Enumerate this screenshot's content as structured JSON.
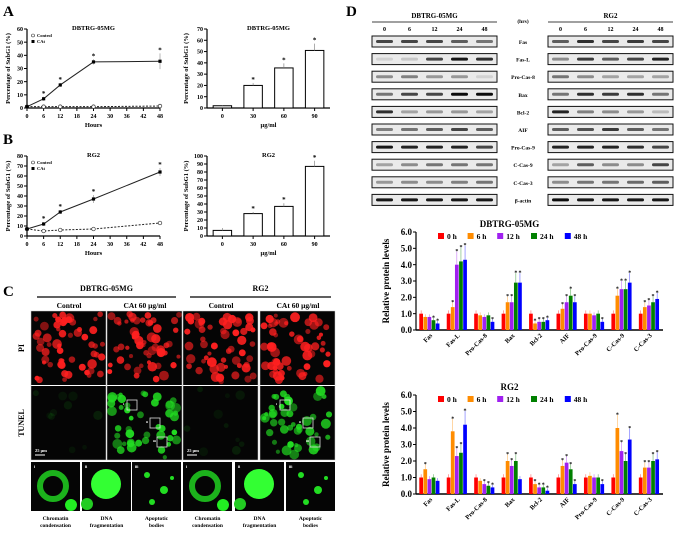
{
  "panel_labels": {
    "a": "A",
    "b": "B",
    "c": "C",
    "d": "D"
  },
  "chart_data": [
    {
      "id": "A-line",
      "type": "line",
      "title": "DBTRG-05MG",
      "xlabel": "Hours",
      "ylabel": "Percentage of SubG1 (%)",
      "xticks": [
        0,
        6,
        12,
        18,
        24,
        30,
        36,
        42,
        48
      ],
      "ylim": [
        0,
        60
      ],
      "yticks": [
        0,
        10,
        20,
        30,
        40,
        50,
        60
      ],
      "legend": [
        "Control",
        "CAt"
      ],
      "legend_position": "top-left",
      "series": [
        {
          "name": "Control",
          "style": "dashed",
          "x": [
            0,
            6,
            12,
            24,
            48
          ],
          "y": [
            1,
            1,
            1,
            1,
            1.5
          ],
          "err": [
            0.5,
            0.5,
            0.5,
            0.5,
            0.5
          ],
          "sig": [
            false,
            false,
            false,
            false,
            false
          ]
        },
        {
          "name": "CAt",
          "style": "solid",
          "x": [
            0,
            6,
            12,
            24,
            48
          ],
          "y": [
            1,
            7,
            17.5,
            35,
            35.5
          ],
          "err": [
            0.5,
            1.5,
            1.5,
            2,
            6
          ],
          "sig": [
            false,
            true,
            true,
            true,
            true
          ]
        }
      ]
    },
    {
      "id": "A-bar",
      "type": "bar",
      "title": "DBTRG-05MG",
      "xlabel": "μg/ml",
      "ylabel": "Percentage of SubG1 (%)",
      "categories": [
        "0",
        "30",
        "60",
        "90"
      ],
      "values": [
        2,
        20,
        35.5,
        51
      ],
      "err": [
        0.5,
        2,
        4,
        6
      ],
      "sig": [
        false,
        true,
        true,
        true
      ],
      "ylim": [
        0,
        70
      ],
      "yticks": [
        0,
        10,
        20,
        30,
        40,
        50,
        60,
        70
      ]
    },
    {
      "id": "B-line",
      "type": "line",
      "title": "RG2",
      "xlabel": "Hours",
      "ylabel": "Percentage of SubG1 (%)",
      "xticks": [
        0,
        6,
        12,
        18,
        24,
        30,
        36,
        42,
        48
      ],
      "ylim": [
        0,
        80
      ],
      "yticks": [
        0,
        10,
        20,
        30,
        40,
        50,
        60,
        70,
        80
      ],
      "legend": [
        "Control",
        "CAt"
      ],
      "legend_position": "top-left",
      "series": [
        {
          "name": "Control",
          "style": "dashed",
          "x": [
            0,
            6,
            12,
            24,
            48
          ],
          "y": [
            7,
            5,
            6,
            7,
            13
          ],
          "err": [
            1,
            1,
            1,
            1,
            1.5
          ],
          "sig": [
            false,
            false,
            false,
            false,
            false
          ]
        },
        {
          "name": "CAt",
          "style": "solid",
          "x": [
            0,
            6,
            12,
            24,
            48
          ],
          "y": [
            7,
            12,
            24,
            37,
            64
          ],
          "err": [
            1,
            2,
            2,
            4,
            4
          ],
          "sig": [
            false,
            true,
            true,
            true,
            true
          ]
        }
      ]
    },
    {
      "id": "B-bar",
      "type": "bar",
      "title": "RG2",
      "xlabel": "μg/ml",
      "ylabel": "Percentage of SubG1 (%)",
      "categories": [
        "0",
        "30",
        "60",
        "90"
      ],
      "values": [
        7,
        28,
        37,
        87
      ],
      "err": [
        3,
        2,
        4,
        7
      ],
      "sig": [
        false,
        true,
        true,
        true
      ],
      "ylim": [
        0,
        100
      ],
      "yticks": [
        0,
        10,
        20,
        30,
        40,
        50,
        60,
        70,
        80,
        90,
        100
      ]
    },
    {
      "id": "D-bar-dbtrg",
      "type": "bar",
      "title": "DBTRG-05MG",
      "ylabel": "Relative protein levels",
      "ylim": [
        0,
        6
      ],
      "yticks": [
        "0.0",
        "1.0",
        "2.0",
        "3.0",
        "4.0",
        "5.0",
        "6.0"
      ],
      "categories": [
        "Fas",
        "Fas-L",
        "Pro-Cas-8",
        "Bax",
        "Bcl-2",
        "AIF",
        "Pro-Cas-9",
        "C-Cas-9",
        "C-Cas-3"
      ],
      "legend_position": "top-right",
      "series": [
        {
          "name": "0 h",
          "color": "#ff0000",
          "values": [
            1.0,
            1.0,
            1.0,
            1.0,
            1.0,
            1.0,
            1.0,
            1.0,
            1.0
          ]
        },
        {
          "name": "6 h",
          "color": "#ff8c00",
          "values": [
            0.8,
            1.4,
            0.9,
            1.7,
            0.4,
            1.3,
            1.0,
            2.1,
            1.4
          ]
        },
        {
          "name": "12 h",
          "color": "#a020f0",
          "values": [
            0.8,
            4.0,
            0.8,
            1.7,
            0.5,
            1.7,
            0.9,
            2.5,
            1.5
          ]
        },
        {
          "name": "24 h",
          "color": "#008000",
          "values": [
            0.6,
            4.2,
            0.9,
            2.9,
            0.5,
            2.1,
            1.0,
            2.5,
            1.7
          ]
        },
        {
          "name": "48 h",
          "color": "#0000ff",
          "values": [
            0.4,
            4.3,
            0.5,
            2.9,
            0.6,
            1.7,
            0.5,
            2.9,
            1.9
          ]
        }
      ]
    },
    {
      "id": "D-bar-rg2",
      "type": "bar",
      "title": "RG2",
      "ylabel": "Relative protein levels",
      "ylim": [
        0,
        6
      ],
      "yticks": [
        "0.0",
        "1.0",
        "2.0",
        "3.0",
        "4.0",
        "5.0",
        "6.0"
      ],
      "categories": [
        "Fas",
        "Fas-L",
        "Pro-Cas-8",
        "Bax",
        "Bcl-2",
        "AIF",
        "Pro-Cas-9",
        "C-Cas-9",
        "C-Cas-3"
      ],
      "legend_position": "top-right",
      "series": [
        {
          "name": "0 h",
          "color": "#ff0000",
          "values": [
            1.0,
            1.0,
            1.0,
            1.0,
            1.0,
            1.0,
            1.0,
            1.0,
            1.0
          ]
        },
        {
          "name": "6 h",
          "color": "#ff8c00",
          "values": [
            1.5,
            3.8,
            0.8,
            2.0,
            0.6,
            1.7,
            1.1,
            4.0,
            1.6
          ]
        },
        {
          "name": "12 h",
          "color": "#a020f0",
          "values": [
            0.9,
            2.3,
            0.6,
            1.7,
            0.4,
            1.9,
            1.0,
            2.6,
            1.6
          ]
        },
        {
          "name": "24 h",
          "color": "#008000",
          "values": [
            1.0,
            2.5,
            0.5,
            2.0,
            0.4,
            1.5,
            1.0,
            2.0,
            2.0
          ]
        },
        {
          "name": "48 h",
          "color": "#0000ff",
          "values": [
            0.8,
            4.2,
            0.4,
            0.9,
            0.2,
            0.6,
            0.6,
            3.3,
            2.1
          ]
        }
      ]
    }
  ],
  "panel_c": {
    "cell_lines": [
      "DBTRG-05MG",
      "RG2"
    ],
    "conditions": [
      "Control",
      "CAt 60 μg/ml"
    ],
    "rows": [
      "PI",
      "TUNEL"
    ],
    "scale_bar": "25 μm",
    "box_labels": [
      "i",
      "ii",
      "iii"
    ],
    "insets": [
      {
        "tag": "i",
        "caption": [
          "Chromatin",
          "condensation"
        ]
      },
      {
        "tag": "ii",
        "caption": [
          "DNA",
          "fragmentation"
        ]
      },
      {
        "tag": "iii",
        "caption": [
          "Apoptotic",
          "bodies"
        ]
      }
    ]
  },
  "panel_d": {
    "cell_lines": [
      "DBTRG-05MG",
      "RG2"
    ],
    "unit": "(hrs)",
    "timepoints": [
      "0",
      "6",
      "12",
      "24",
      "48"
    ],
    "proteins": [
      "Fas",
      "Fas-L",
      "Pro-Cas-8",
      "Bax",
      "Bcl-2",
      "AIF",
      "Pro-Cas-9",
      "C-Cas-9",
      "C-Cas-3",
      "β-actin"
    ],
    "band_intensity_dbtrg": [
      [
        0.7,
        0.7,
        0.7,
        0.6,
        0.5
      ],
      [
        0.1,
        0.15,
        0.7,
        0.9,
        0.8
      ],
      [
        0.4,
        0.45,
        0.35,
        0.35,
        0.1
      ],
      [
        0.5,
        0.7,
        0.7,
        0.95,
        0.95
      ],
      [
        0.8,
        0.3,
        0.35,
        0.35,
        0.3
      ],
      [
        0.45,
        0.5,
        0.6,
        0.7,
        0.6
      ],
      [
        0.9,
        0.85,
        0.85,
        0.85,
        0.7
      ],
      [
        0.3,
        0.4,
        0.5,
        0.5,
        0.5
      ],
      [
        0.35,
        0.4,
        0.4,
        0.45,
        0.5
      ],
      [
        0.9,
        0.9,
        0.9,
        0.9,
        0.9
      ]
    ],
    "band_intensity_rg2": [
      [
        0.6,
        0.8,
        0.7,
        0.75,
        0.7
      ],
      [
        0.4,
        0.75,
        0.6,
        0.7,
        0.85
      ],
      [
        0.5,
        0.4,
        0.3,
        0.3,
        0.3
      ],
      [
        0.5,
        0.8,
        0.75,
        0.8,
        0.5
      ],
      [
        0.85,
        0.45,
        0.4,
        0.35,
        0.2
      ],
      [
        0.6,
        0.65,
        0.75,
        0.6,
        0.5
      ],
      [
        0.85,
        0.85,
        0.85,
        0.8,
        0.7
      ],
      [
        0.3,
        0.6,
        0.4,
        0.4,
        0.7
      ],
      [
        0.4,
        0.5,
        0.5,
        0.55,
        0.6
      ],
      [
        0.95,
        0.9,
        0.9,
        0.9,
        0.9
      ]
    ]
  }
}
